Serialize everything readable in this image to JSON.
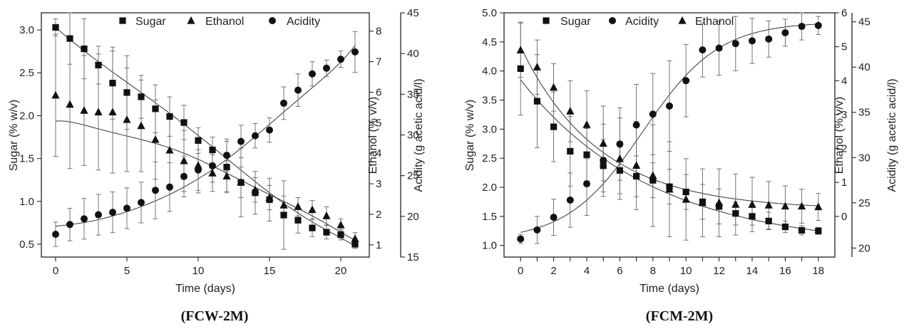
{
  "chart_data": [
    {
      "id": "fcw",
      "type": "scatter",
      "caption": "(FCW-2M)",
      "xlabel": "Time (days)",
      "ylabel": "Sugar (% w/v)",
      "y2label": "Ethanol (% v/v)",
      "y3label": "Acidity (g acetic acid/l)",
      "xlim": [
        -1,
        22
      ],
      "ylim": [
        0.35,
        3.2
      ],
      "y2lim": [
        0.6,
        8.6
      ],
      "y3lim": [
        15,
        45
      ],
      "xticks": [
        0,
        5,
        10,
        15,
        20
      ],
      "yticks": [
        0.5,
        1.0,
        1.5,
        2.0,
        2.5,
        3.0
      ],
      "yticklabels": [
        "0.5",
        "1.0",
        "1.5",
        "2.0",
        "2.5",
        "3.0"
      ],
      "y2ticks": [
        1,
        2,
        3,
        4,
        5,
        6,
        7,
        8
      ],
      "y3ticks": [
        15,
        20,
        25,
        30,
        35,
        40,
        45
      ],
      "legend": [
        "Sugar",
        "Ethanol",
        "Acidity"
      ],
      "series": [
        {
          "name": "Sugar",
          "marker": "square",
          "axis": "left",
          "x": [
            0,
            1,
            2,
            3,
            4,
            5,
            6,
            7,
            8,
            9,
            10,
            11,
            12,
            13,
            14,
            15,
            16,
            17,
            18,
            19,
            20,
            21
          ],
          "values": [
            3.03,
            2.9,
            2.78,
            2.59,
            2.38,
            2.27,
            2.22,
            2.08,
            1.99,
            1.92,
            1.71,
            1.6,
            1.4,
            1.22,
            1.1,
            1.02,
            0.84,
            0.78,
            0.69,
            0.64,
            0.61,
            0.5
          ],
          "errors": [
            0.1,
            0.3,
            0.35,
            0.22,
            0.42,
            0.43,
            0.25,
            0.28,
            0.23,
            0.2,
            0.15,
            0.15,
            0.3,
            0.4,
            0.25,
            0.25,
            0.4,
            0.15,
            0.1,
            0.08,
            0.06,
            0.05
          ]
        },
        {
          "name": "Ethanol",
          "marker": "triangle",
          "axis": "right",
          "x": [
            0,
            1,
            2,
            3,
            4,
            5,
            6,
            7,
            8,
            9,
            10,
            11,
            12,
            13,
            14,
            15,
            16,
            17,
            18,
            19,
            20,
            21
          ],
          "values": [
            5.9,
            5.6,
            5.4,
            5.35,
            5.35,
            5.1,
            4.9,
            4.45,
            4.1,
            3.75,
            3.6,
            3.35,
            3.25,
            3.05,
            2.8,
            2.55,
            2.3,
            2.25,
            2.15,
            1.95,
            1.65,
            1.2
          ],
          "errors": [
            2.0,
            2.1,
            1.8,
            1.9,
            2.0,
            1.7,
            1.5,
            1.3,
            1.2,
            1.0,
            0.9,
            0.6,
            0.5,
            0.5,
            0.4,
            0.4,
            0.3,
            0.3,
            0.3,
            0.3,
            0.2,
            0.2
          ]
        },
        {
          "name": "Acidity",
          "marker": "circle",
          "axis": "right2",
          "x": [
            0,
            1,
            2,
            3,
            4,
            5,
            6,
            7,
            8,
            9,
            10,
            11,
            12,
            13,
            14,
            15,
            16,
            17,
            18,
            19,
            20,
            21
          ],
          "values": [
            17.8,
            19.0,
            19.7,
            20.2,
            20.5,
            21.0,
            21.7,
            23.2,
            23.6,
            24.9,
            25.7,
            26.2,
            27.5,
            29.2,
            29.9,
            30.6,
            33.9,
            35.5,
            37.5,
            38.2,
            39.3,
            40.2
          ],
          "errors": [
            1.5,
            2.0,
            2.5,
            2.5,
            2.5,
            2.5,
            2.5,
            3.5,
            3.0,
            2.5,
            2.5,
            2.0,
            2.0,
            2.0,
            1.5,
            1.5,
            2.0,
            2.0,
            1.5,
            1.0,
            1.0,
            2.5
          ]
        }
      ],
      "fits": [
        {
          "name": "Sugar fit",
          "axis": "left",
          "shape": "poly",
          "x": [
            0,
            3,
            6,
            9,
            12,
            15,
            18,
            21
          ],
          "values": [
            3.03,
            2.63,
            2.27,
            1.9,
            1.5,
            1.1,
            0.76,
            0.48
          ]
        },
        {
          "name": "Ethanol fit",
          "axis": "right",
          "shape": "poly",
          "x": [
            0,
            3,
            6,
            9,
            12,
            15,
            18,
            21
          ],
          "values": [
            5.05,
            4.8,
            4.45,
            4.0,
            3.35,
            2.65,
            1.95,
            1.15
          ]
        },
        {
          "name": "Acidity fit",
          "axis": "right2",
          "shape": "poly",
          "x": [
            0,
            3,
            6,
            9,
            12,
            15,
            18,
            21
          ],
          "values": [
            18.8,
            19.6,
            21.2,
            23.6,
            27.0,
            31.3,
            35.8,
            41.0
          ]
        }
      ]
    },
    {
      "id": "fcm",
      "type": "scatter",
      "caption": "(FCM-2M)",
      "xlabel": "Time (days)",
      "ylabel": "Sugar (% w/v)",
      "y2label": "Ethanol (% v/v)",
      "y3label": "Acidity (g acetic acid/l)",
      "xlim": [
        -1,
        19
      ],
      "ylim": [
        0.8,
        5.0
      ],
      "y2lim": [
        -1.2,
        6.0
      ],
      "y3lim": [
        19,
        46
      ],
      "xticks": [
        0,
        1,
        2,
        3,
        4,
        5,
        6,
        7,
        8,
        9,
        10,
        11,
        12,
        13,
        14,
        15,
        16,
        17,
        18
      ],
      "xticklabels": [
        "0",
        "",
        "2",
        "",
        "4",
        "",
        "6",
        "",
        "8",
        "",
        "10",
        "",
        "12",
        "",
        "14",
        "",
        "16",
        "",
        "18"
      ],
      "yticks": [
        1.0,
        1.5,
        2.0,
        2.5,
        3.0,
        3.5,
        4.0,
        4.5,
        5.0
      ],
      "yticklabels": [
        "1.0",
        "1.5",
        "2.0",
        "2.5",
        "3.0",
        "3.5",
        "4.0",
        "4.5",
        "5.0"
      ],
      "y2ticks": [
        0,
        1,
        2,
        3,
        4,
        5,
        6
      ],
      "y3ticks": [
        20,
        25,
        30,
        35,
        40,
        45
      ],
      "legend": [
        "Sugar",
        "Acidity",
        "Ethanol"
      ],
      "series": [
        {
          "name": "Sugar",
          "marker": "square",
          "axis": "left",
          "x": [
            0,
            1,
            2,
            3,
            4,
            5,
            6,
            7,
            8,
            9,
            10,
            11,
            12,
            13,
            14,
            15,
            16,
            17,
            18
          ],
          "values": [
            4.04,
            3.48,
            3.04,
            2.62,
            2.56,
            2.37,
            2.29,
            2.19,
            2.12,
            2.01,
            1.92,
            1.75,
            1.67,
            1.55,
            1.5,
            1.42,
            1.32,
            1.26,
            1.25
          ],
          "errors": [
            0.8,
            0.8,
            0.6,
            0.6,
            0.45,
            0.45,
            0.4,
            0.35,
            0.3,
            0.3,
            0.3,
            0.3,
            0.3,
            0.2,
            0.15,
            0.15,
            0.1,
            0.08,
            0.06
          ]
        },
        {
          "name": "Acidity",
          "marker": "circle",
          "axis": "right2",
          "x": [
            0,
            1,
            2,
            3,
            4,
            5,
            6,
            7,
            8,
            9,
            10,
            11,
            12,
            13,
            14,
            15,
            16,
            17,
            18
          ],
          "values": [
            21.0,
            22.0,
            23.4,
            25.3,
            27.1,
            29.7,
            31.5,
            33.6,
            34.8,
            35.7,
            38.5,
            41.9,
            42.1,
            42.6,
            42.9,
            43.1,
            43.8,
            44.5,
            44.6
          ],
          "errors": [
            0.5,
            1.5,
            2.0,
            3.0,
            3.5,
            4.0,
            4.0,
            4.5,
            4.5,
            5.0,
            4.0,
            3.0,
            3.0,
            3.0,
            2.5,
            2.0,
            1.5,
            1.5,
            1.0
          ]
        },
        {
          "name": "Ethanol",
          "marker": "triangle",
          "axis": "right",
          "x": [
            0,
            1,
            2,
            3,
            4,
            5,
            6,
            7,
            8,
            9,
            10,
            11,
            12,
            13,
            14,
            15,
            16,
            17,
            18
          ],
          "values": [
            4.9,
            4.4,
            3.8,
            3.1,
            2.7,
            2.15,
            1.7,
            1.5,
            1.2,
            0.8,
            0.5,
            0.4,
            0.4,
            0.35,
            0.35,
            0.33,
            0.3,
            0.3,
            0.28
          ],
          "errors": [
            0.8,
            0.8,
            0.7,
            0.9,
            1.0,
            1.1,
            1.2,
            1.3,
            1.5,
            1.4,
            1.2,
            1.0,
            1.0,
            0.9,
            0.8,
            0.7,
            0.6,
            0.5,
            0.4
          ]
        }
      ],
      "fits": [
        {
          "name": "Sugar fit",
          "axis": "left",
          "shape": "decay",
          "params": {
            "a": 2.9,
            "k": 0.126,
            "c": 0.95
          }
        },
        {
          "name": "Ethanol fit",
          "axis": "right",
          "shape": "decay",
          "params": {
            "a": 4.8,
            "k": 0.21,
            "c": 0.2
          }
        },
        {
          "name": "Acidity fit",
          "axis": "right2",
          "shape": "logistic",
          "params": {
            "lo": 20.8,
            "hi": 45.0,
            "x0": 7.4,
            "s": 2.3
          }
        }
      ]
    }
  ]
}
